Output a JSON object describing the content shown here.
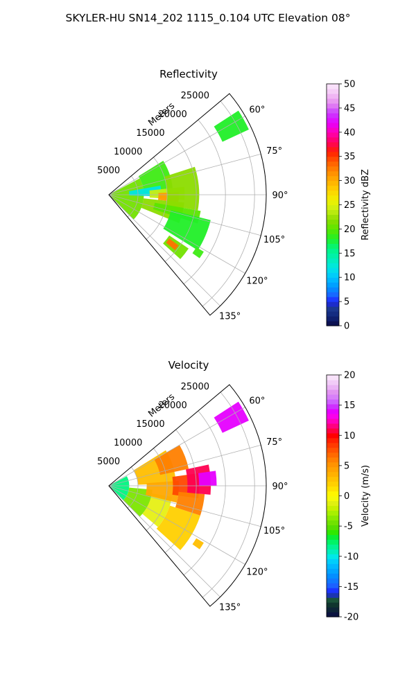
{
  "figure": {
    "suptitle": "SKYLER-HU  SN14_202  1115_0.104 UTC Elevation 08°"
  },
  "chart_data": [
    {
      "type": "heatmap",
      "subtype": "polar-sector",
      "title": "Reflectivity",
      "rlabel": "Meters",
      "r_ticks": [
        5000,
        10000,
        15000,
        20000,
        25000
      ],
      "r_max": 27000,
      "theta_range_deg": [
        50,
        140
      ],
      "theta_ticks": [
        60,
        75,
        90,
        105,
        120,
        135
      ],
      "theta_tick_labels": [
        "60°",
        "75°",
        "90°",
        "105°",
        "120°",
        "135°"
      ],
      "grid": true,
      "colorbar": {
        "label": "Reflectivity dBZ",
        "min": 0,
        "max": 50,
        "ticks": [
          0,
          5,
          10,
          15,
          20,
          25,
          30,
          35,
          40,
          45,
          50
        ]
      },
      "regions": [
        {
          "r": [
            300,
            6000
          ],
          "theta": [
            62,
            135
          ],
          "value": 21
        },
        {
          "r": [
            6000,
            11000
          ],
          "theta": [
            58,
            88
          ],
          "value": 19
        },
        {
          "r": [
            3500,
            9000
          ],
          "theta": [
            80,
            92
          ],
          "value": 12
        },
        {
          "r": [
            7000,
            13000
          ],
          "theta": [
            84,
            94
          ],
          "value": 24
        },
        {
          "r": [
            8500,
            12000
          ],
          "theta": [
            88,
            96
          ],
          "value": 31
        },
        {
          "r": [
            10000,
            15500
          ],
          "theta": [
            72,
            100
          ],
          "value": 22
        },
        {
          "r": [
            6000,
            13000
          ],
          "theta": [
            96,
            112
          ],
          "value": 22
        },
        {
          "r": [
            8000,
            16000
          ],
          "theta": [
            100,
            108
          ],
          "value": 20
        },
        {
          "r": [
            11000,
            18000
          ],
          "theta": [
            104,
            122
          ],
          "value": 18
        },
        {
          "r": [
            12500,
            16500
          ],
          "theta": [
            124,
            132
          ],
          "value": 21
        },
        {
          "r": [
            12800,
            14800
          ],
          "theta": [
            126,
            130
          ],
          "value": 33
        },
        {
          "r": [
            21500,
            26500
          ],
          "theta": [
            57,
            65
          ],
          "value": 18
        },
        {
          "r": [
            17500,
            19000
          ],
          "theta": [
            121,
            125
          ],
          "value": 19
        }
      ]
    },
    {
      "type": "heatmap",
      "subtype": "polar-sector",
      "title": "Velocity",
      "rlabel": "Meters",
      "r_ticks": [
        5000,
        10000,
        15000,
        20000,
        25000
      ],
      "r_max": 27000,
      "theta_range_deg": [
        50,
        140
      ],
      "theta_ticks": [
        60,
        75,
        90,
        105,
        120,
        135
      ],
      "theta_tick_labels": [
        "60°",
        "75°",
        "90°",
        "105°",
        "120°",
        "135°"
      ],
      "grid": true,
      "colorbar": {
        "label": "Velocity (m/s)",
        "min": -20,
        "max": 20,
        "ticks": [
          -20,
          -15,
          -10,
          -5,
          0,
          5,
          10,
          15,
          20
        ]
      },
      "regions": [
        {
          "r": [
            300,
            3500
          ],
          "theta": [
            62,
            135
          ],
          "value": -8
        },
        {
          "r": [
            3500,
            7500
          ],
          "theta": [
            95,
            135
          ],
          "value": -4
        },
        {
          "r": [
            7500,
            11000
          ],
          "theta": [
            100,
            130
          ],
          "value": -1
        },
        {
          "r": [
            11000,
            16500
          ],
          "theta": [
            108,
            132
          ],
          "value": 2
        },
        {
          "r": [
            5000,
            11500
          ],
          "theta": [
            58,
            88
          ],
          "value": 3
        },
        {
          "r": [
            9000,
            14000
          ],
          "theta": [
            60,
            78
          ],
          "value": 6
        },
        {
          "r": [
            6500,
            12000
          ],
          "theta": [
            86,
            104
          ],
          "value": 4
        },
        {
          "r": [
            11000,
            15500
          ],
          "theta": [
            82,
            98
          ],
          "value": 8
        },
        {
          "r": [
            12000,
            16500
          ],
          "theta": [
            95,
            108
          ],
          "value": 6
        },
        {
          "r": [
            13500,
            17500
          ],
          "theta": [
            78,
            95
          ],
          "value": 11
        },
        {
          "r": [
            15500,
            18500
          ],
          "theta": [
            82,
            90
          ],
          "value": 14
        },
        {
          "r": [
            21500,
            26500
          ],
          "theta": [
            57,
            65
          ],
          "value": 14
        },
        {
          "r": [
            17500,
            19000
          ],
          "theta": [
            121,
            125
          ],
          "value": 3
        }
      ]
    }
  ]
}
